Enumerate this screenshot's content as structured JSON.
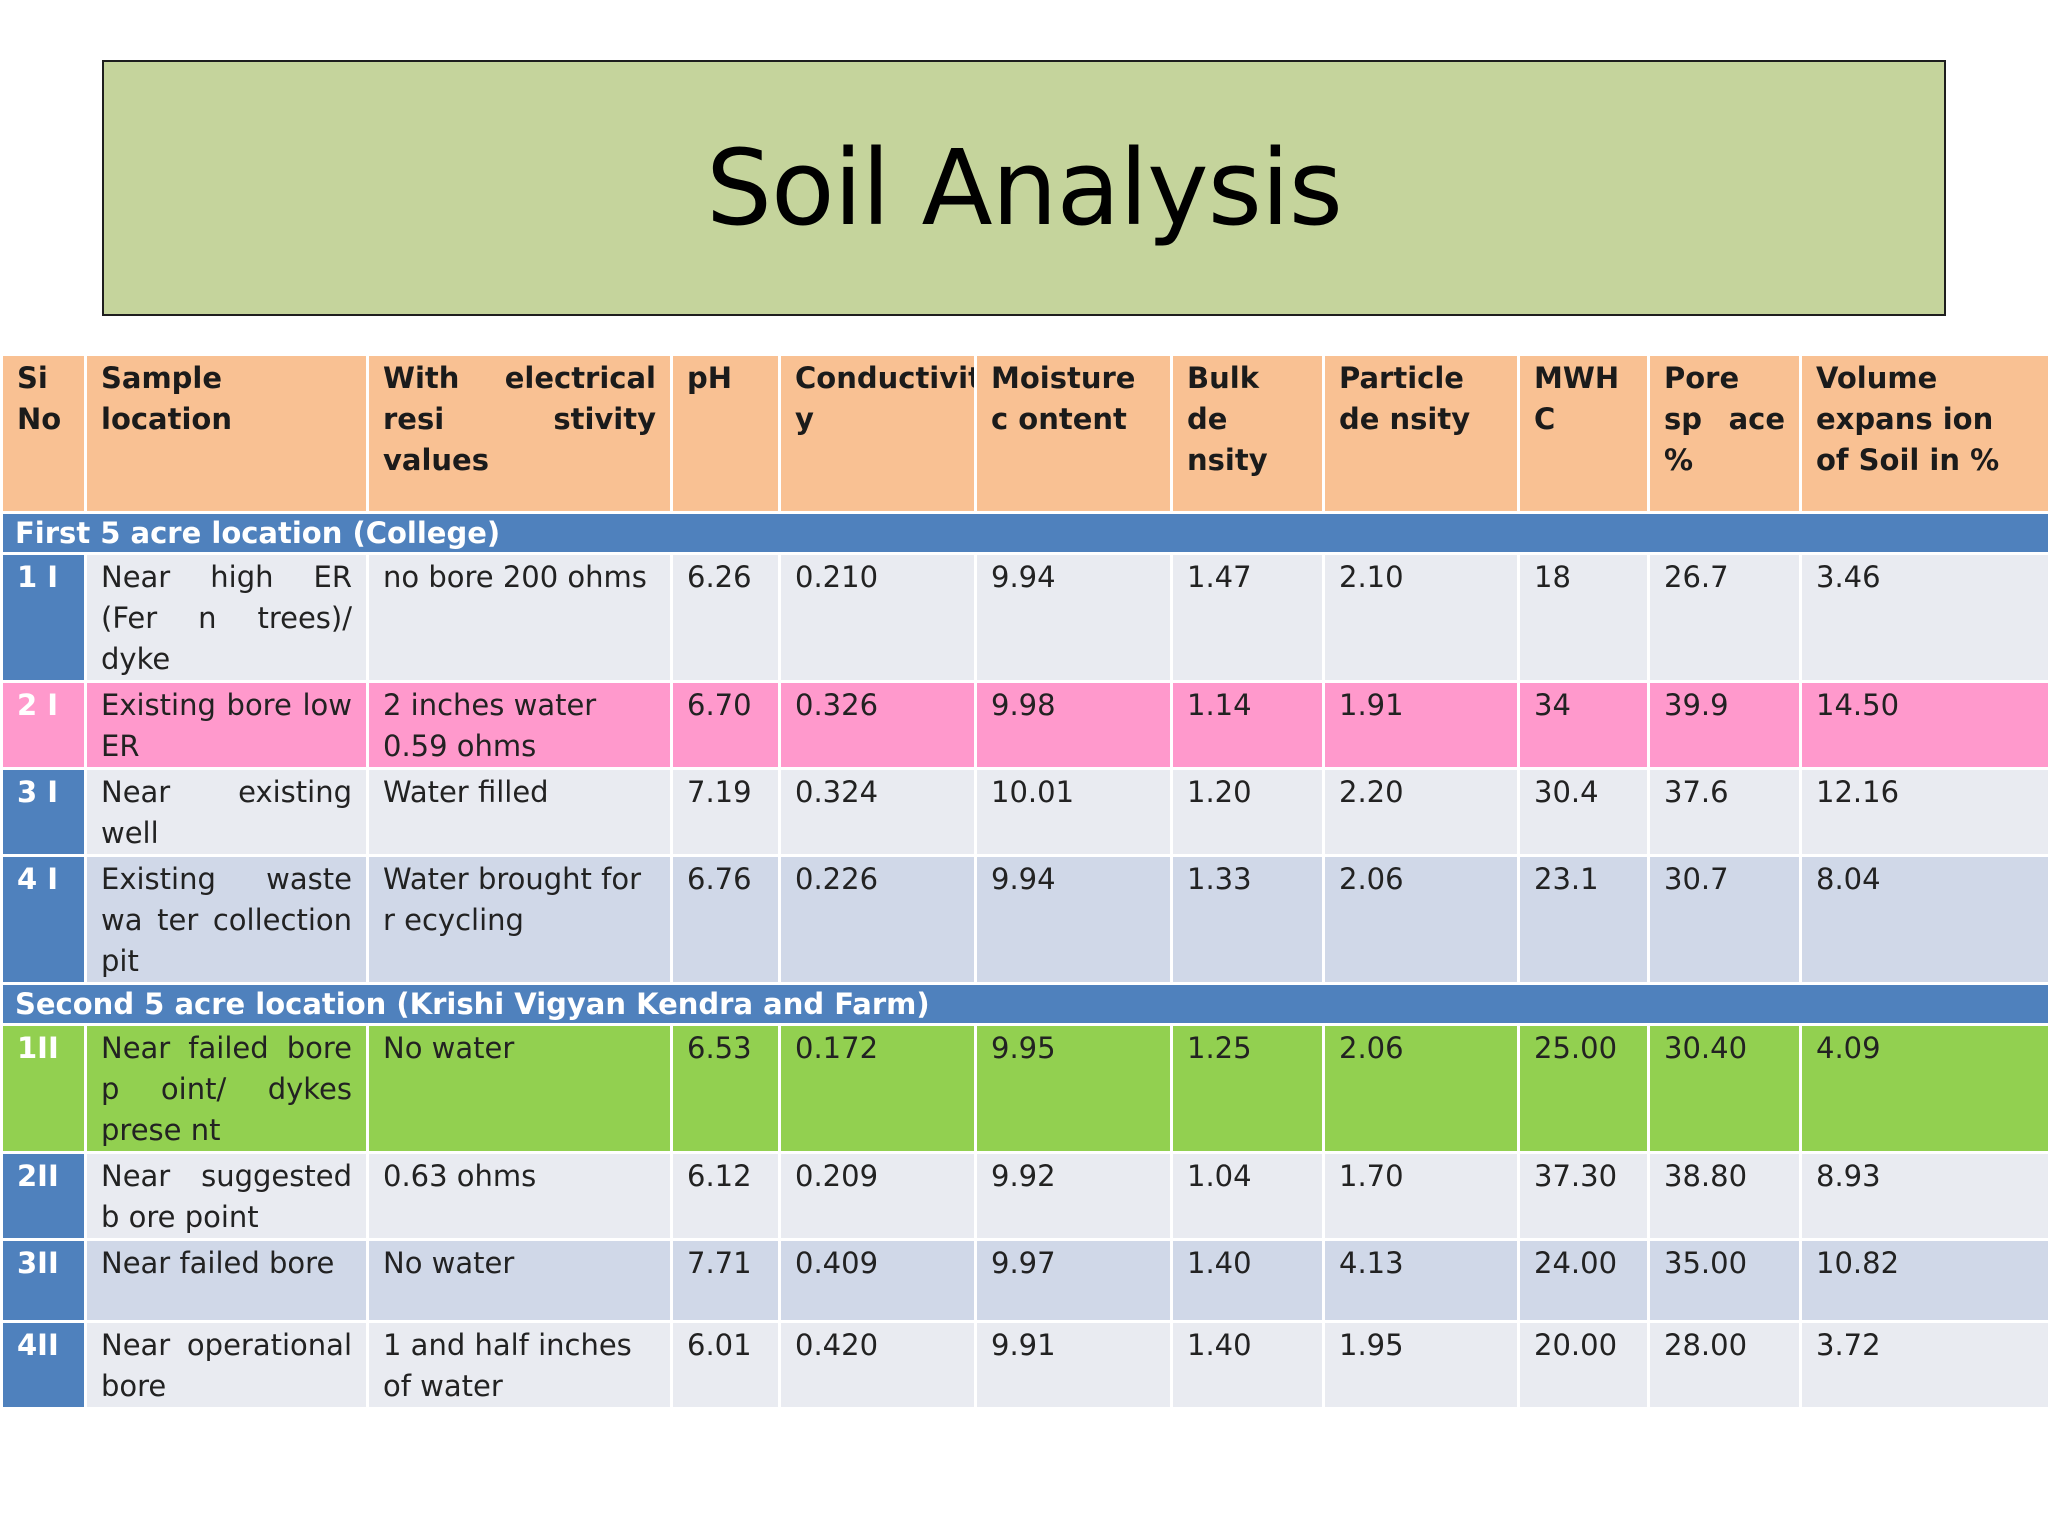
{
  "title": "Soil Analysis",
  "columns": [
    "Si No",
    "Sample location",
    "With electrical resi stivity values",
    "pH",
    "Conductivit y",
    "Moisture c ontent",
    "Bulk de nsity",
    "Particle de nsity",
    "MWH C",
    "Pore sp ace %",
    "Volume expans ion of Soil in %"
  ],
  "sections": [
    {
      "label": "First 5 acre location (College)",
      "rows": [
        {
          "id": "1 I",
          "location": "Near high ER (Fer n trees)/ dyke",
          "resistivity": "no bore 200 ohms",
          "ph": "6.26",
          "conductivity": "0.210",
          "moisture": "9.94",
          "bulk_density": "1.47",
          "particle_density": "2.10",
          "mwhc": "18",
          "pore_space": "26.7",
          "volume_expansion": "3.46"
        },
        {
          "id": "2 I",
          "location": "Existing bore low ER",
          "resistivity": "2 inches water 0.59 ohms",
          "ph": "6.70",
          "conductivity": "0.326",
          "moisture": "9.98",
          "bulk_density": "1.14",
          "particle_density": "1.91",
          "mwhc": "34",
          "pore_space": "39.9",
          "volume_expansion": "14.50"
        },
        {
          "id": "3 I",
          "location": "Near existing well",
          "resistivity": "Water filled",
          "ph": "7.19",
          "conductivity": "0.324",
          "moisture": "10.01",
          "bulk_density": "1.20",
          "particle_density": "2.20",
          "mwhc": "30.4",
          "pore_space": "37.6",
          "volume_expansion": "12.16"
        },
        {
          "id": "4 I",
          "location": "Existing waste wa ter collection pit",
          "resistivity": "Water brought for r ecycling",
          "ph": "6.76",
          "conductivity": "0.226",
          "moisture": "9.94",
          "bulk_density": "1.33",
          "particle_density": "2.06",
          "mwhc": "23.1",
          "pore_space": "30.7",
          "volume_expansion": "8.04"
        }
      ]
    },
    {
      "label": "Second 5 acre location (Krishi Vigyan Kendra and Farm)",
      "rows": [
        {
          "id": "1II",
          "location": "Near failed bore p oint/ dykes prese nt",
          "resistivity": "No water",
          "ph": "6.53",
          "conductivity": "0.172",
          "moisture": "9.95",
          "bulk_density": "1.25",
          "particle_density": "2.06",
          "mwhc": "25.00",
          "pore_space": "30.40",
          "volume_expansion": "4.09"
        },
        {
          "id": "2II",
          "location": "Near suggested b ore point",
          "resistivity": "0.63 ohms",
          "ph": "6.12",
          "conductivity": "0.209",
          "moisture": "9.92",
          "bulk_density": "1.04",
          "particle_density": "1.70",
          "mwhc": "37.30",
          "pore_space": "38.80",
          "volume_expansion": "8.93"
        },
        {
          "id": "3II",
          "location": "Near failed bore",
          "resistivity": "No water",
          "ph": "7.71",
          "conductivity": "0.409",
          "moisture": "9.97",
          "bulk_density": "1.40",
          "particle_density": "4.13",
          "mwhc": "24.00",
          "pore_space": "35.00",
          "volume_expansion": "10.82"
        },
        {
          "id": "4II",
          "location": "Near operational bore",
          "resistivity": "1 and half inches of water",
          "ph": "6.01",
          "conductivity": "0.420",
          "moisture": "9.91",
          "bulk_density": "1.40",
          "particle_density": "1.95",
          "mwhc": "20.00",
          "pore_space": "28.00",
          "volume_expansion": "3.72"
        }
      ]
    }
  ],
  "colors": {
    "title_bg": "#c5d49c",
    "header_bg": "#f9c193",
    "section_bg": "#4f81bd",
    "row_light": "#e9ebf1",
    "row_dark": "#d0d8e8",
    "highlight_pink": "#ff99cc",
    "highlight_green": "#92d050"
  }
}
